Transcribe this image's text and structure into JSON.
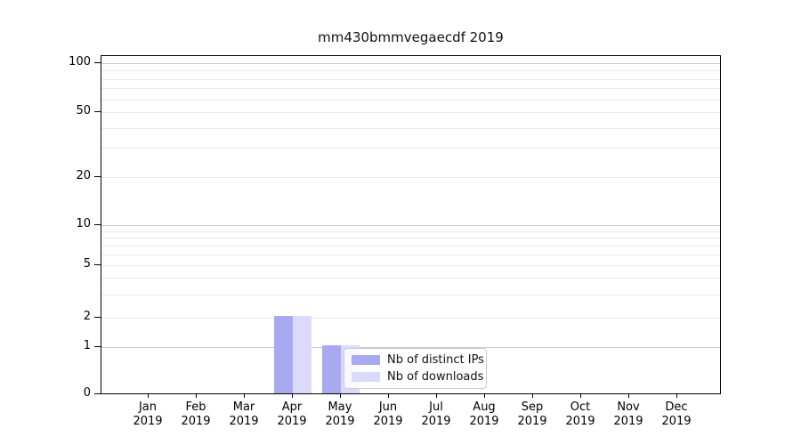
{
  "title": "mm430bmmvegaecdf 2019",
  "colors": {
    "distinct_ips": "#a9a9f2",
    "downloads": "#dbdbf9",
    "grid_major": "#c9c9c9",
    "grid_minor": "#eaeaea",
    "spine": "#000000",
    "legend_border": "#cccccc"
  },
  "y_axis": {
    "tick_values": [
      100,
      50,
      20,
      10,
      5,
      2,
      1,
      0
    ],
    "tick_labels": [
      "100",
      "50",
      "20",
      "10",
      "5",
      "2",
      "1",
      "0"
    ],
    "minor_grid_values": [
      2,
      3,
      4,
      5,
      6,
      7,
      8,
      9,
      20,
      30,
      40,
      50,
      60,
      70,
      80,
      90
    ],
    "major_grid_values": [
      1,
      10,
      100
    ]
  },
  "x_axis": {
    "month_names": [
      "Jan",
      "Feb",
      "Mar",
      "Apr",
      "May",
      "Jun",
      "Jul",
      "Aug",
      "Sep",
      "Oct",
      "Nov",
      "Dec"
    ],
    "year": "2019"
  },
  "legend": {
    "items": [
      {
        "label": "Nb of distinct IPs",
        "color_key": "distinct_ips"
      },
      {
        "label": "Nb of downloads",
        "color_key": "downloads"
      }
    ]
  },
  "chart_data": {
    "type": "bar",
    "title": "mm430bmmvegaecdf 2019",
    "categories": [
      "Jan 2019",
      "Feb 2019",
      "Mar 2019",
      "Apr 2019",
      "May 2019",
      "Jun 2019",
      "Jul 2019",
      "Aug 2019",
      "Sep 2019",
      "Oct 2019",
      "Nov 2019",
      "Dec 2019"
    ],
    "series": [
      {
        "name": "Nb of distinct IPs",
        "values": [
          0,
          0,
          0,
          2,
          1,
          0,
          0,
          0,
          0,
          0,
          0,
          0
        ]
      },
      {
        "name": "Nb of downloads",
        "values": [
          0,
          0,
          0,
          2,
          1,
          0,
          0,
          0,
          0,
          0,
          0,
          0
        ]
      }
    ],
    "xlabel": "",
    "ylabel": "",
    "ylim": [
      0,
      110
    ],
    "yscale": "symlog",
    "y_ticks_shown": [
      0,
      1,
      2,
      5,
      10,
      20,
      50,
      100
    ],
    "grid": "horizontal log gridlines on",
    "legend_position": "lower center inside axes"
  }
}
